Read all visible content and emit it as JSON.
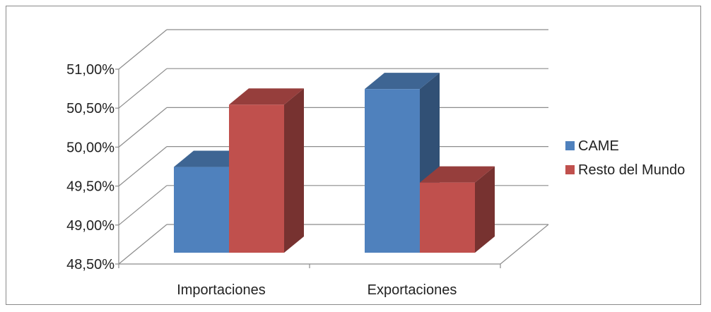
{
  "chart_data": {
    "type": "bar",
    "categories": [
      "Importaciones",
      "Exportaciones"
    ],
    "series": [
      {
        "name": "CAME",
        "values": [
          49.6,
          50.6
        ],
        "color": "#4F81BD"
      },
      {
        "name": "Resto del Mundo",
        "values": [
          50.4,
          49.4
        ],
        "color": "#C0504D"
      }
    ],
    "ylim": [
      48.5,
      51.0
    ],
    "yticks": [
      "48,50%",
      "49,00%",
      "49,50%",
      "50,00%",
      "50,50%",
      "51,00%"
    ],
    "ytick_values": [
      48.5,
      49.0,
      49.5,
      50.0,
      50.5,
      51.0
    ],
    "grid": true,
    "legend_position": "right",
    "style": "3d-column"
  }
}
